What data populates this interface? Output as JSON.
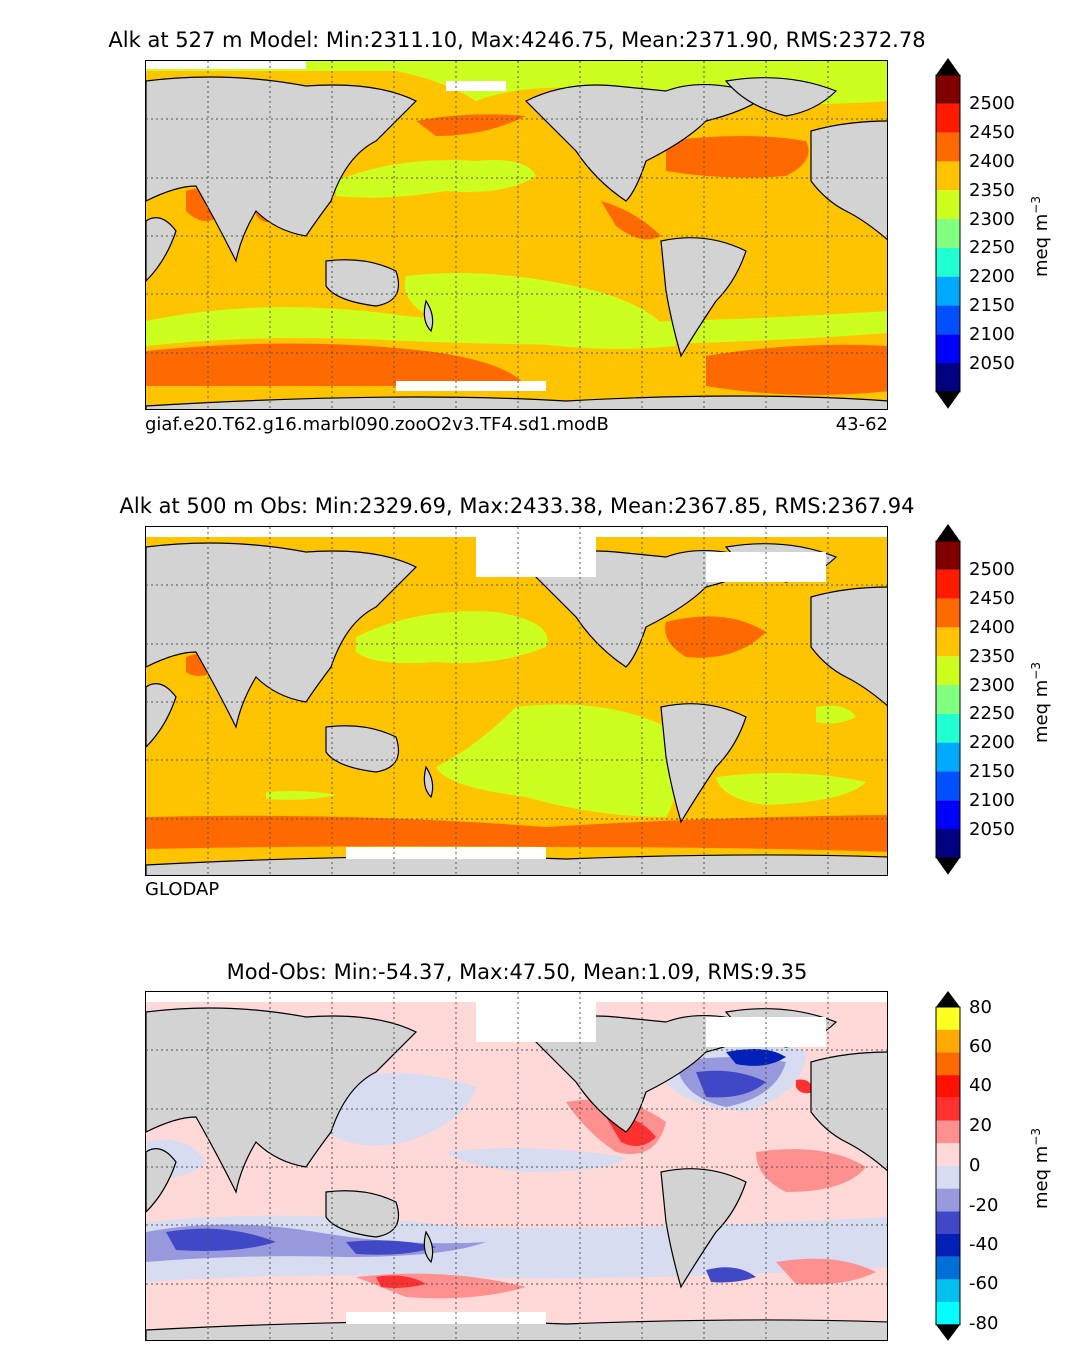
{
  "panels": [
    {
      "title": "Alk at 527 m Model: Min:2311.10, Max:4246.75, Mean:2371.90, RMS:2372.78",
      "caption_left": "giaf.e20.T62.g16.marbl090.zooO2v3.TF4.sd1.modB",
      "caption_right": "43-62"
    },
    {
      "title": "Alk at 500 m Obs: Min:2329.69, Max:2433.38, Mean:2367.85, RMS:2367.94",
      "caption_left": "GLODAP",
      "caption_right": ""
    },
    {
      "title": "Mod-Obs: Min:-54.37, Max:47.50, Mean:1.09, RMS:9.35",
      "caption_left": "",
      "caption_right": ""
    }
  ],
  "colorbars": {
    "alk": {
      "units_text": "meq m",
      "units_exp": "−3",
      "ticks": [
        "2500",
        "2450",
        "2400",
        "2350",
        "2300",
        "2250",
        "2200",
        "2150",
        "2100",
        "2050"
      ],
      "colors": [
        "#000080",
        "#0000ff",
        "#0050ff",
        "#00aaff",
        "#20ffd0",
        "#80ff80",
        "#ccff20",
        "#ffc400",
        "#ff6a00",
        "#ff1a00",
        "#800000"
      ],
      "under_color": "#000000",
      "over_color": "#000000"
    },
    "diff": {
      "units_text": "meq m",
      "units_exp": "−3",
      "ticks": [
        "80",
        "60",
        "40",
        "20",
        "0",
        "-20",
        "-40",
        "-60",
        "-80"
      ],
      "colors": [
        "#00ffff",
        "#00c0f0",
        "#0070d8",
        "#0020b8",
        "#4048c8",
        "#9898dc",
        "#d8dcf0",
        "#ffd8d8",
        "#ff9090",
        "#ff3030",
        "#ff1000",
        "#ff6a00",
        "#ffaa00",
        "#ffff20"
      ],
      "under_color": "#000000",
      "over_color": "#000000"
    }
  },
  "map_colors": {
    "land": "#d3d3d3",
    "no_data": "#ffffff",
    "grid": "#555555"
  },
  "field_colors": {
    "alk_base": "#ffc400",
    "alk_low": "#ccff20",
    "alk_high": "#ff6a00",
    "alk_max": "#ff1a00",
    "alk_dark": "#800000",
    "diff_base": "#ffd8d8",
    "diff_neg1": "#d8dcf0",
    "diff_neg2": "#9898dc",
    "diff_neg3": "#4048c8",
    "diff_neg4": "#0020b8",
    "diff_pos1": "#ff9090",
    "diff_pos2": "#ff3030"
  }
}
